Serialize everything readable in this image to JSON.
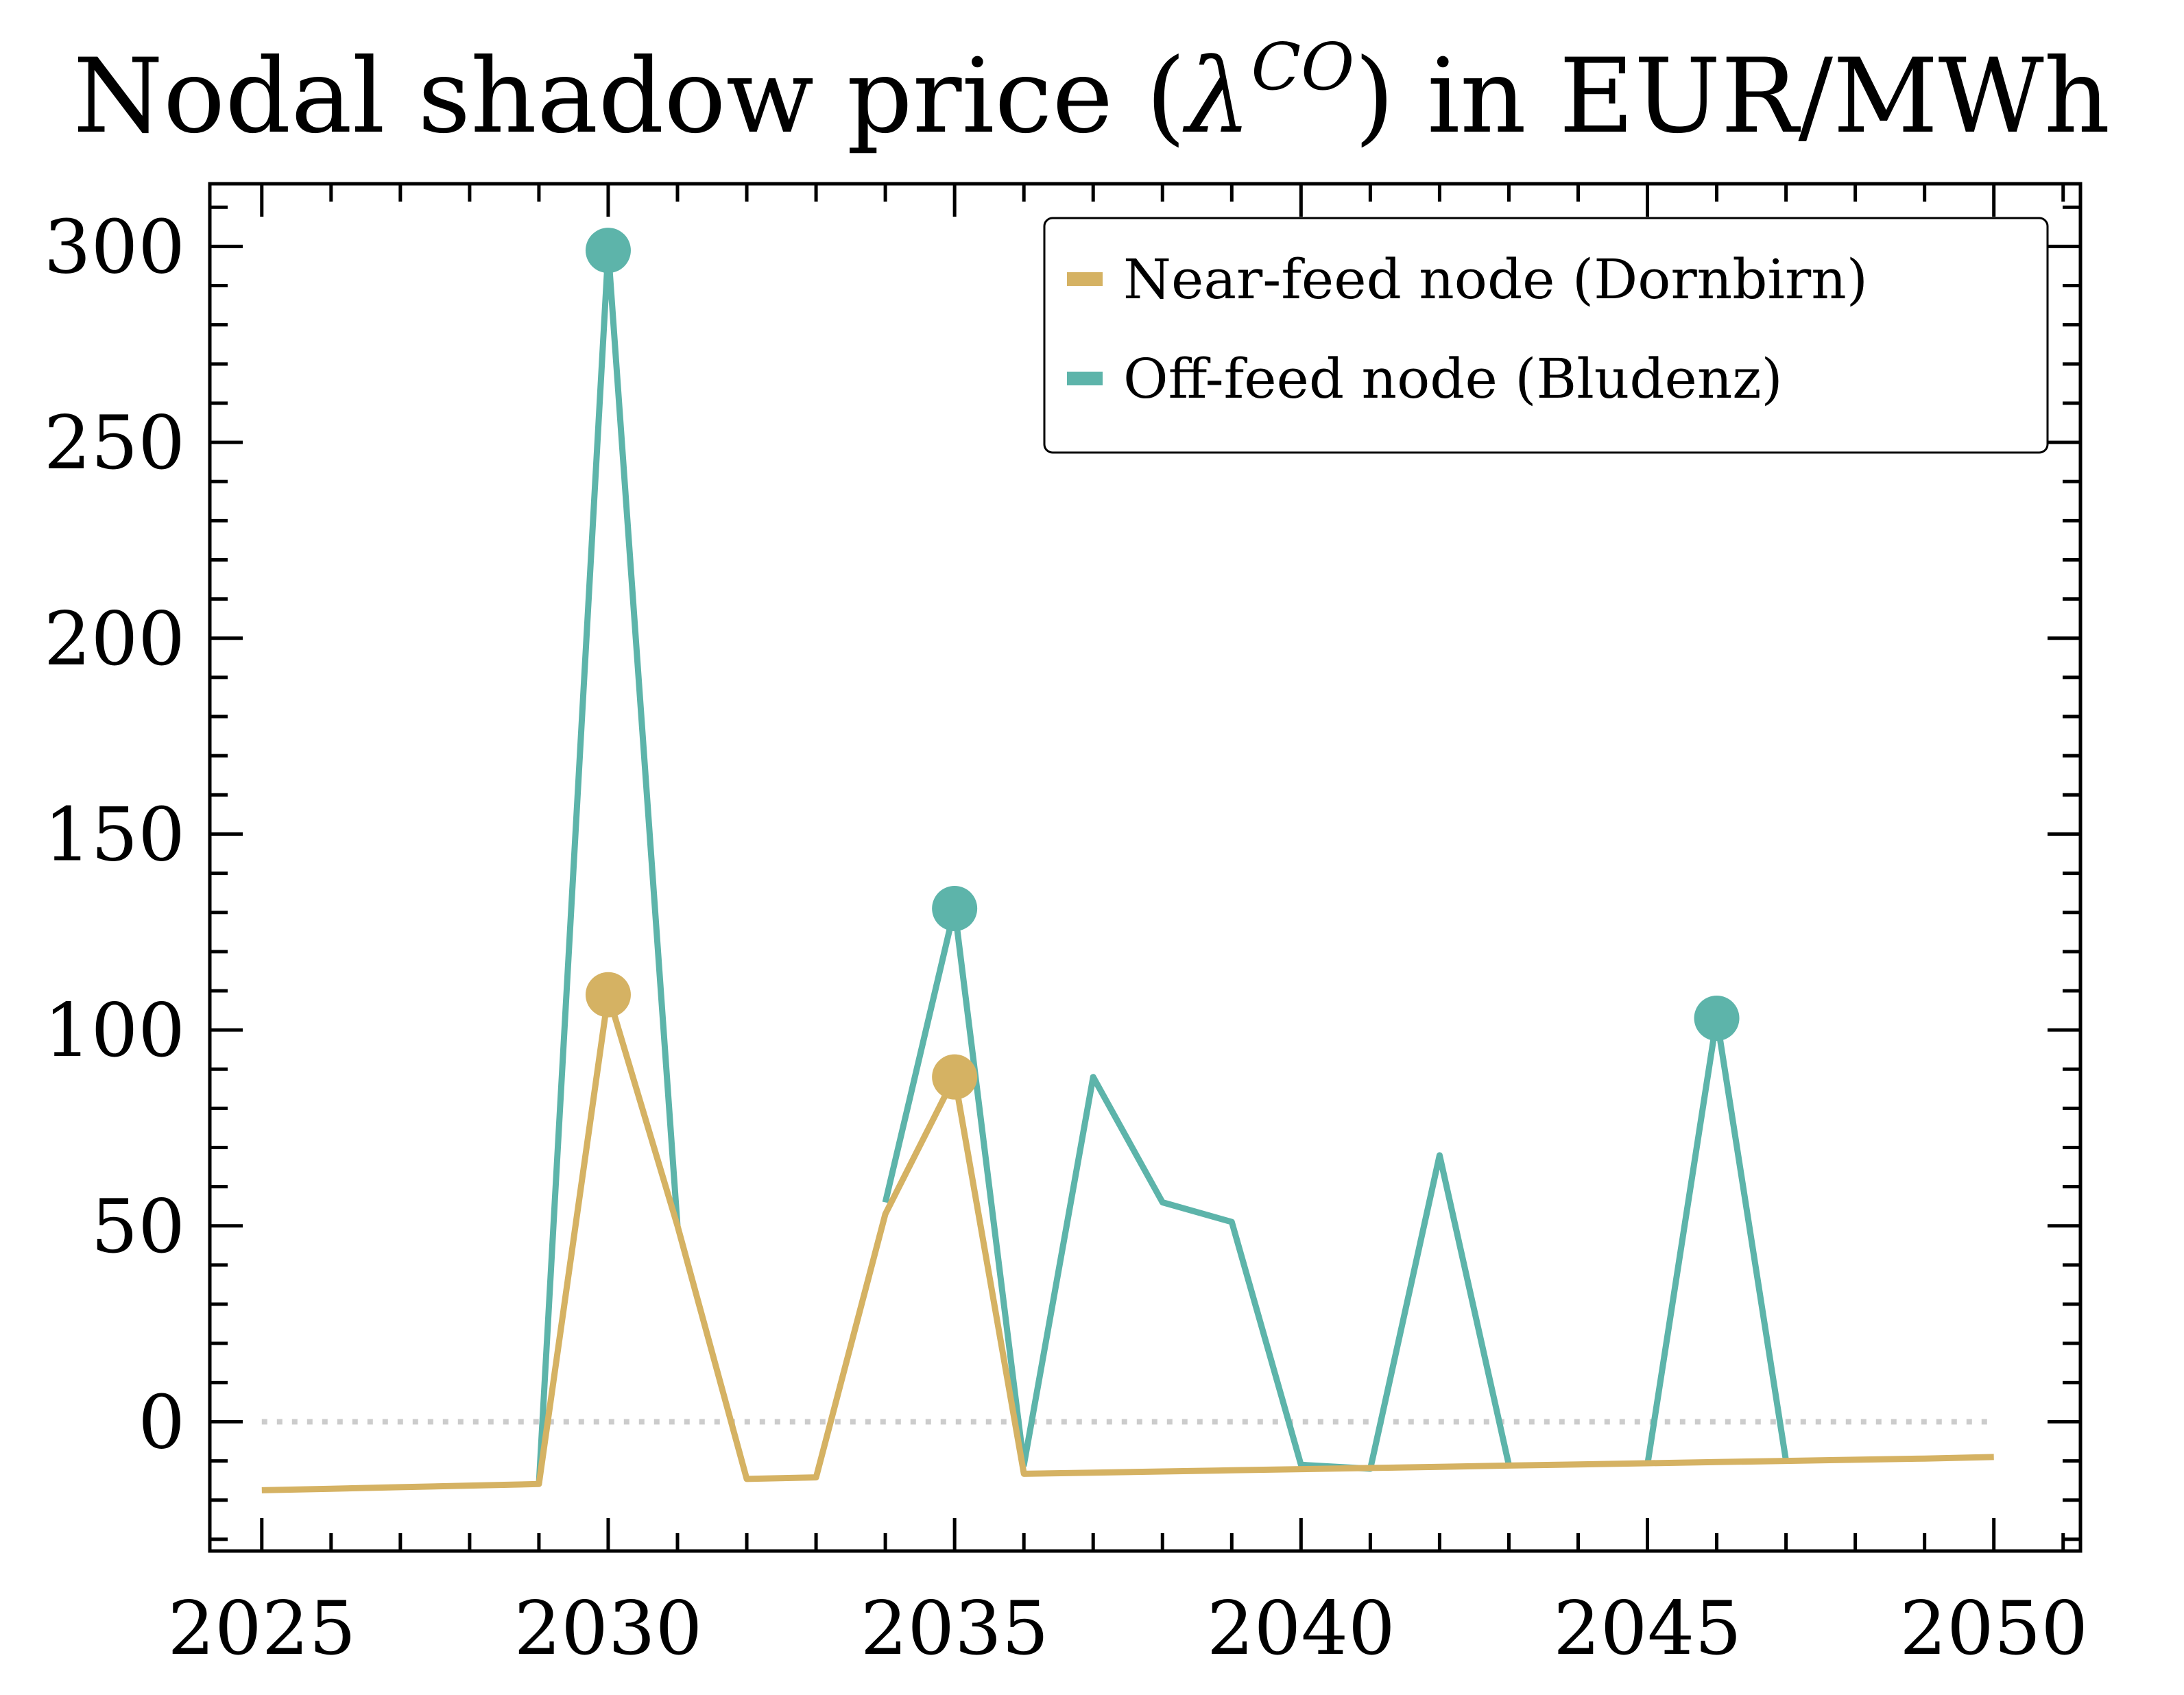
{
  "chart_data": {
    "type": "line",
    "title": {
      "main": "Nodal shadow price (",
      "symbol": "λ",
      "superscript": "CO",
      "rest": ") in EUR/MWh"
    },
    "xlabel": "",
    "ylabel": "",
    "xlim": [
      2024.25,
      2051.25
    ],
    "ylim": [
      -33,
      316
    ],
    "x_ticks": [
      2025,
      2030,
      2035,
      2040,
      2045,
      2050
    ],
    "y_ticks": [
      0,
      50,
      100,
      150,
      200,
      250,
      300
    ],
    "x": [
      2025,
      2026,
      2027,
      2028,
      2029,
      2030,
      2031,
      2032,
      2033,
      2034,
      2035,
      2036,
      2037,
      2038,
      2039,
      2040,
      2041,
      2042,
      2043,
      2044,
      2045,
      2046,
      2047,
      2048,
      2049,
      2050
    ],
    "zero_line": {
      "y": 0,
      "color": "#cccccc",
      "style": "dotted"
    },
    "grid": false,
    "legend_position": "top-right",
    "series": [
      {
        "name": "Near-feed node (Dornbirn)",
        "color": "#d5b263",
        "values": [
          -17.5,
          -17.1,
          -16.7,
          -16.3,
          -15.9,
          109,
          50,
          -14.6,
          -14.2,
          53,
          88,
          -13.3,
          -13.0,
          -12.7,
          -12.4,
          -12.1,
          -11.8,
          -11.5,
          -11.2,
          -10.9,
          -10.6,
          -10.3,
          -10.0,
          -9.7,
          -9.4,
          -9.0
        ],
        "markers": [
          {
            "x": 2030,
            "y": 109
          },
          {
            "x": 2035,
            "y": 88
          }
        ]
      },
      {
        "name": "Off-feed node (Bludenz)",
        "color": "#5db4aa",
        "values": [
          null,
          null,
          null,
          null,
          -16,
          299,
          50,
          null,
          null,
          56,
          131,
          -11,
          88,
          56,
          51,
          -11,
          -12,
          68,
          -11,
          null,
          -11,
          103,
          -10,
          null,
          null,
          null
        ],
        "markers": [
          {
            "x": 2030,
            "y": 299
          },
          {
            "x": 2035,
            "y": 131
          },
          {
            "x": 2046,
            "y": 103
          }
        ]
      }
    ]
  }
}
